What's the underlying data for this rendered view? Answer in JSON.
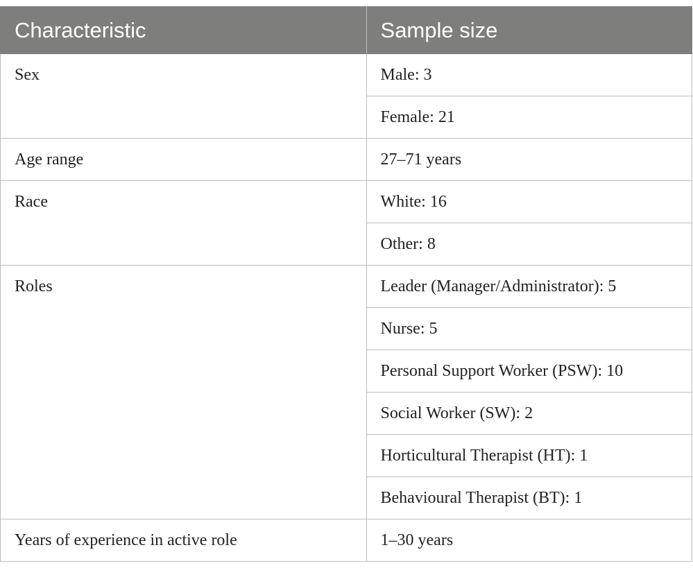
{
  "header": {
    "characteristic": "Characteristic",
    "sample_size": "Sample size"
  },
  "rows": {
    "sex": {
      "label": "Sex",
      "values": [
        "Male: 3",
        "Female: 21"
      ]
    },
    "age": {
      "label": "Age range",
      "values": [
        "27–71 years"
      ]
    },
    "race": {
      "label": "Race",
      "values": [
        "White: 16",
        "Other: 8"
      ]
    },
    "roles": {
      "label": "Roles",
      "values": [
        "Leader (Manager/Administrator): 5",
        "Nurse: 5",
        "Personal Support Worker (PSW): 10",
        "Social Worker (SW): 2",
        "Horticultural Therapist (HT): 1",
        "Behavioural Therapist (BT): 1"
      ]
    },
    "experience": {
      "label": "Years of experience in active role",
      "values": [
        "1–30 years"
      ]
    }
  }
}
